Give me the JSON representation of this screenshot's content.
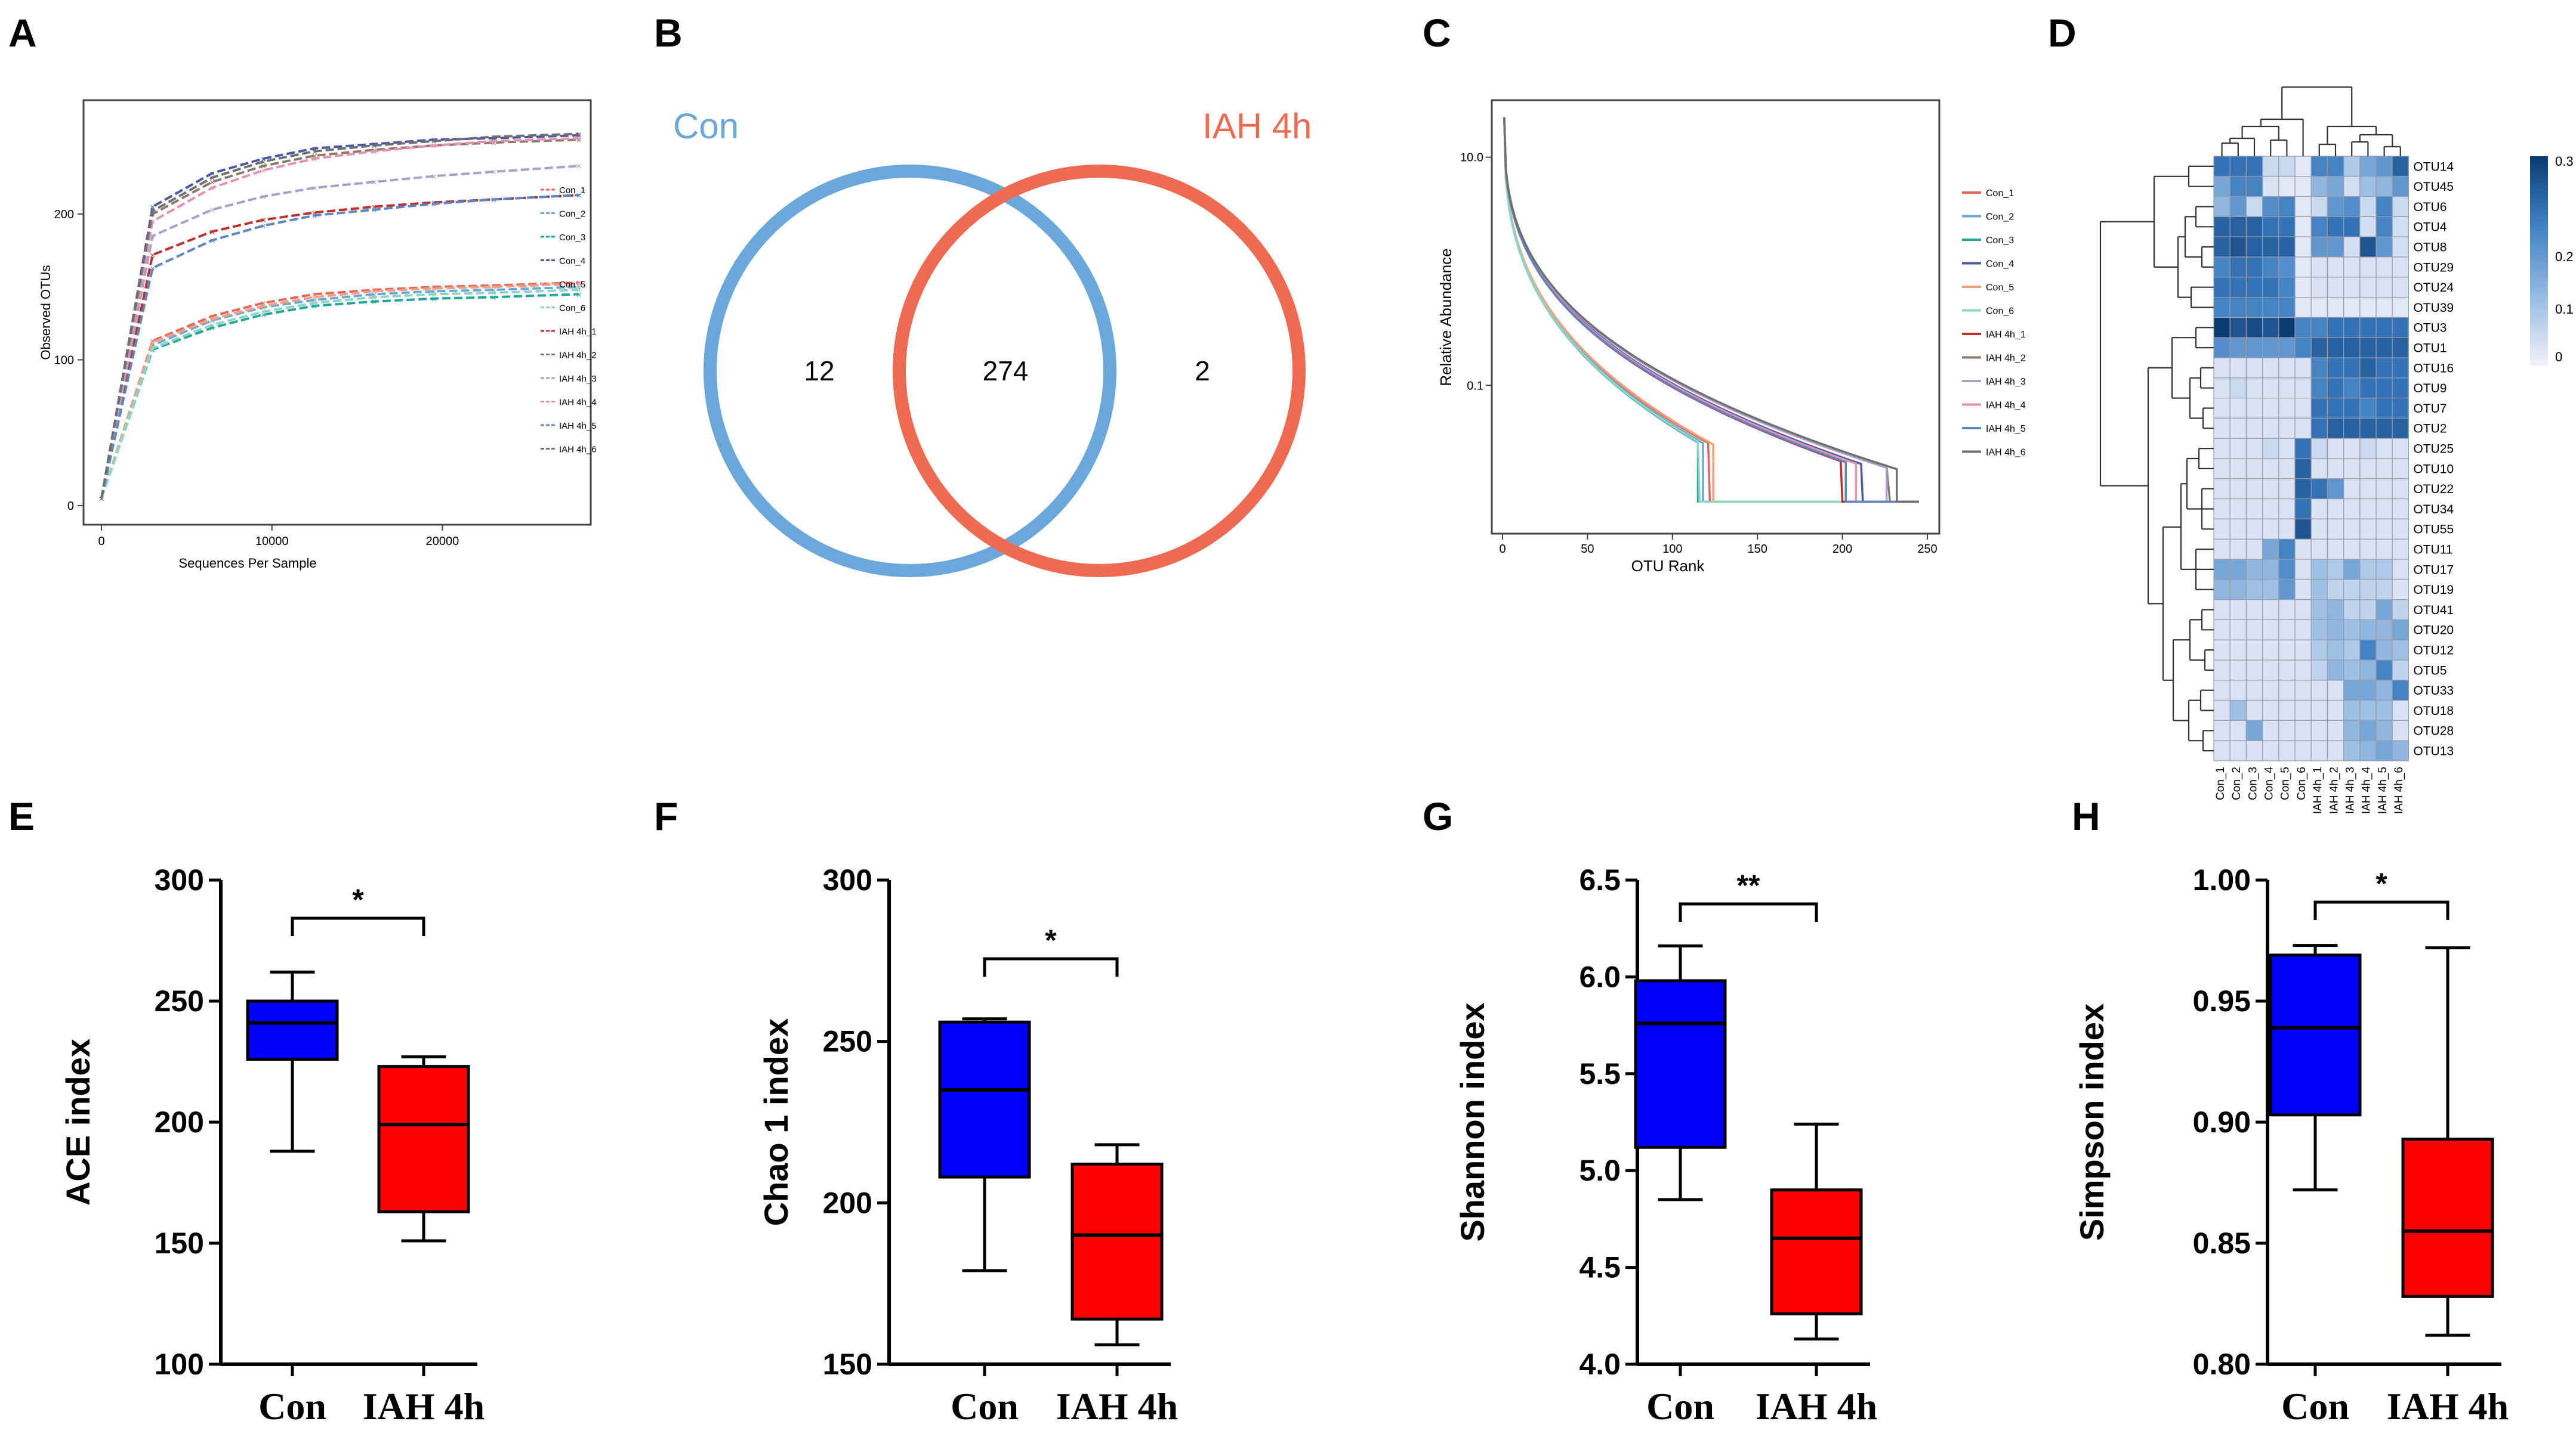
{
  "figure": {
    "panel_letters": [
      "A",
      "B",
      "C",
      "D",
      "E",
      "F",
      "G",
      "H"
    ],
    "colors": {
      "con": "#6aa8dc",
      "iah": "#ee6a50",
      "box_con": "#0000ff",
      "box_iah": "#ff0000",
      "series": [
        "#e8645a",
        "#6aa8dc",
        "#1fa89a",
        "#4a58a8",
        "#f0a080",
        "#8fd4c4",
        "#c0302a",
        "#8a7a6a",
        "#a8a0c8",
        "#e890b0",
        "#5a86c6",
        "#707070"
      ]
    }
  },
  "chart_data": [
    {
      "panel": "A",
      "type": "line",
      "title": "",
      "xlabel": "Sequences Per Sample",
      "ylabel": "Observed OTUs",
      "xlim": [
        0,
        28000
      ],
      "ylim": [
        0,
        265
      ],
      "xticks": [
        0,
        10000,
        20000
      ],
      "xtick_labels": [
        "0",
        "10000",
        "20000"
      ],
      "yticks": [
        0,
        100,
        200
      ],
      "ytick_labels": [
        "0",
        "100",
        "200"
      ],
      "x": [
        0,
        3000,
        6500,
        9500,
        12500,
        16000,
        19500,
        23000,
        28000
      ],
      "series": [
        {
          "name": "Con_1",
          "values": [
            5,
            113,
            130,
            139,
            145,
            148,
            150,
            151,
            153
          ]
        },
        {
          "name": "Con_2",
          "values": [
            5,
            110,
            127,
            136,
            141,
            145,
            147,
            148,
            150
          ]
        },
        {
          "name": "Con_3",
          "values": [
            5,
            107,
            122,
            131,
            137,
            140,
            142,
            143,
            145
          ]
        },
        {
          "name": "Con_4",
          "values": [
            5,
            205,
            228,
            238,
            245,
            248,
            251,
            252,
            254
          ]
        },
        {
          "name": "Con_5",
          "values": [
            5,
            112,
            128,
            137,
            143,
            147,
            149,
            150,
            152
          ]
        },
        {
          "name": "Con_6",
          "values": [
            5,
            108,
            124,
            133,
            139,
            143,
            145,
            146,
            148
          ]
        },
        {
          "name": "IAH 4h_1",
          "values": [
            5,
            172,
            188,
            196,
            201,
            205,
            208,
            210,
            213
          ]
        },
        {
          "name": "IAH 4h_2",
          "values": [
            5,
            200,
            222,
            233,
            240,
            244,
            247,
            249,
            251
          ]
        },
        {
          "name": "IAH 4h_3",
          "values": [
            5,
            185,
            203,
            212,
            218,
            222,
            226,
            229,
            233
          ]
        },
        {
          "name": "IAH 4h_4",
          "values": [
            5,
            195,
            218,
            230,
            238,
            243,
            247,
            250,
            252
          ]
        },
        {
          "name": "IAH 4h_5",
          "values": [
            5,
            163,
            182,
            192,
            199,
            203,
            207,
            210,
            213
          ]
        },
        {
          "name": "IAH 4h_6",
          "values": [
            5,
            202,
            225,
            236,
            243,
            247,
            250,
            253,
            255
          ]
        }
      ]
    },
    {
      "panel": "B",
      "type": "venn",
      "sets": [
        "Con",
        "IAH 4h"
      ],
      "only_con": "12",
      "shared": "274",
      "only_iah": "2"
    },
    {
      "panel": "C",
      "type": "line",
      "title": "",
      "xlabel": "OTU Rank",
      "ylabel": "Relative Abundance",
      "yscale": "log",
      "xlim": [
        -10,
        255
      ],
      "ylim_log10": [
        -2.3,
        1.5
      ],
      "xticks": [
        0,
        50,
        100,
        150,
        200,
        250
      ],
      "xtick_labels": [
        "0",
        "50",
        "100",
        "150",
        "200",
        "250"
      ],
      "yticks": [
        10,
        0.1
      ],
      "ytick_labels": [
        "10.0",
        "0.1"
      ],
      "legend": [
        "Con_1",
        "Con_2",
        "Con_3",
        "Con_4",
        "Con_5",
        "Con_6",
        "IAH 4h_1",
        "IAH 4h_2",
        "IAH 4h_3",
        "IAH 4h_4",
        "IAH 4h_5",
        "IAH 4h_6"
      ],
      "end_ranks": [
        122,
        118,
        115,
        212,
        124,
        116,
        200,
        228,
        226,
        208,
        202,
        232
      ]
    },
    {
      "panel": "D",
      "type": "heatmap",
      "rows": [
        "OTU14",
        "OTU45",
        "OTU6",
        "OTU4",
        "OTU8",
        "OTU29",
        "OTU24",
        "OTU39",
        "OTU3",
        "OTU1",
        "OTU16",
        "OTU9",
        "OTU7",
        "OTU2",
        "OTU25",
        "OTU10",
        "OTU22",
        "OTU34",
        "OTU55",
        "OTU11",
        "OTU17",
        "OTU19",
        "OTU41",
        "OTU20",
        "OTU12",
        "OTU5",
        "OTU33",
        "OTU18",
        "OTU28",
        "OTU13"
      ],
      "columns": [
        "Con_1",
        "Con_2",
        "Con_3",
        "Con_4",
        "Con_5",
        "Con_6",
        "IAH 4h_1",
        "IAH 4h_2",
        "IAH 4h_3",
        "IAH 4h_4",
        "IAH 4h_5",
        "IAH 4h_6"
      ],
      "colorbar_ticks": [
        "0.3",
        "0.2",
        "0.1",
        "0"
      ],
      "colorbar_range": [
        0,
        0.35
      ],
      "values": [
        [
          0.25,
          0.25,
          0.25,
          0.05,
          0.05,
          0.02,
          0.22,
          0.22,
          0.08,
          0.15,
          0.18,
          0.28
        ],
        [
          0.15,
          0.22,
          0.22,
          0.03,
          0.02,
          0.02,
          0.12,
          0.15,
          0.04,
          0.1,
          0.12,
          0.18
        ],
        [
          0.12,
          0.18,
          0.05,
          0.2,
          0.22,
          0.02,
          0.05,
          0.18,
          0.2,
          0.05,
          0.22,
          0.05
        ],
        [
          0.28,
          0.28,
          0.28,
          0.25,
          0.25,
          0.02,
          0.22,
          0.25,
          0.25,
          0.04,
          0.22,
          0.04
        ],
        [
          0.28,
          0.3,
          0.28,
          0.28,
          0.28,
          0.02,
          0.18,
          0.18,
          0.04,
          0.3,
          0.18,
          0.04
        ],
        [
          0.22,
          0.25,
          0.25,
          0.22,
          0.2,
          0.02,
          0.03,
          0.03,
          0.03,
          0.03,
          0.03,
          0.03
        ],
        [
          0.25,
          0.25,
          0.25,
          0.25,
          0.22,
          0.02,
          0.03,
          0.03,
          0.03,
          0.03,
          0.03,
          0.03
        ],
        [
          0.22,
          0.22,
          0.22,
          0.22,
          0.22,
          0.02,
          0.02,
          0.02,
          0.02,
          0.02,
          0.02,
          0.02
        ],
        [
          0.35,
          0.3,
          0.32,
          0.3,
          0.35,
          0.22,
          0.22,
          0.25,
          0.25,
          0.25,
          0.25,
          0.25
        ],
        [
          0.2,
          0.18,
          0.18,
          0.18,
          0.18,
          0.22,
          0.28,
          0.28,
          0.28,
          0.28,
          0.28,
          0.28
        ],
        [
          0.03,
          0.03,
          0.03,
          0.03,
          0.03,
          0.03,
          0.22,
          0.25,
          0.25,
          0.28,
          0.25,
          0.25
        ],
        [
          0.03,
          0.05,
          0.03,
          0.03,
          0.03,
          0.03,
          0.22,
          0.25,
          0.22,
          0.25,
          0.25,
          0.25
        ],
        [
          0.03,
          0.03,
          0.03,
          0.03,
          0.03,
          0.03,
          0.25,
          0.25,
          0.25,
          0.22,
          0.25,
          0.25
        ],
        [
          0.03,
          0.03,
          0.03,
          0.03,
          0.03,
          0.03,
          0.25,
          0.28,
          0.28,
          0.28,
          0.28,
          0.28
        ],
        [
          0.03,
          0.03,
          0.03,
          0.05,
          0.03,
          0.25,
          0.05,
          0.03,
          0.03,
          0.05,
          0.03,
          0.03
        ],
        [
          0.03,
          0.03,
          0.03,
          0.03,
          0.03,
          0.28,
          0.03,
          0.03,
          0.03,
          0.03,
          0.03,
          0.03
        ],
        [
          0.03,
          0.03,
          0.03,
          0.03,
          0.03,
          0.28,
          0.25,
          0.18,
          0.03,
          0.03,
          0.03,
          0.03
        ],
        [
          0.03,
          0.03,
          0.03,
          0.03,
          0.03,
          0.25,
          0.03,
          0.03,
          0.03,
          0.03,
          0.03,
          0.03
        ],
        [
          0.03,
          0.03,
          0.03,
          0.03,
          0.03,
          0.3,
          0.03,
          0.03,
          0.03,
          0.03,
          0.03,
          0.03
        ],
        [
          0.03,
          0.03,
          0.03,
          0.15,
          0.22,
          0.03,
          0.03,
          0.03,
          0.03,
          0.03,
          0.03,
          0.03
        ],
        [
          0.15,
          0.15,
          0.12,
          0.12,
          0.2,
          0.03,
          0.1,
          0.08,
          0.15,
          0.08,
          0.08,
          0.03
        ],
        [
          0.12,
          0.12,
          0.1,
          0.1,
          0.18,
          0.03,
          0.1,
          0.06,
          0.06,
          0.06,
          0.06,
          0.03
        ],
        [
          0.03,
          0.03,
          0.03,
          0.03,
          0.03,
          0.03,
          0.1,
          0.12,
          0.06,
          0.06,
          0.15,
          0.06
        ],
        [
          0.03,
          0.03,
          0.03,
          0.03,
          0.03,
          0.03,
          0.1,
          0.12,
          0.1,
          0.12,
          0.12,
          0.15
        ],
        [
          0.03,
          0.03,
          0.03,
          0.03,
          0.03,
          0.03,
          0.08,
          0.1,
          0.08,
          0.22,
          0.12,
          0.1
        ],
        [
          0.03,
          0.03,
          0.03,
          0.03,
          0.03,
          0.03,
          0.06,
          0.12,
          0.1,
          0.12,
          0.22,
          0.06
        ],
        [
          0.03,
          0.03,
          0.03,
          0.03,
          0.03,
          0.03,
          0.03,
          0.03,
          0.15,
          0.15,
          0.12,
          0.22
        ],
        [
          0.03,
          0.1,
          0.03,
          0.03,
          0.03,
          0.03,
          0.03,
          0.03,
          0.1,
          0.1,
          0.1,
          0.03
        ],
        [
          0.03,
          0.03,
          0.15,
          0.03,
          0.03,
          0.03,
          0.03,
          0.03,
          0.12,
          0.15,
          0.12,
          0.03
        ],
        [
          0.03,
          0.03,
          0.03,
          0.03,
          0.03,
          0.03,
          0.03,
          0.03,
          0.1,
          0.12,
          0.15,
          0.12
        ]
      ]
    },
    {
      "panel": "E",
      "type": "box",
      "ylabel": "ACE index",
      "ylim": [
        100,
        300
      ],
      "yticks": [
        100,
        150,
        200,
        250,
        300
      ],
      "categories": [
        "Con",
        "IAH 4h"
      ],
      "significance": "*",
      "boxes": [
        {
          "min": 188,
          "q1": 226,
          "median": 241,
          "q3": 250,
          "max": 262
        },
        {
          "min": 151,
          "q1": 163,
          "median": 199,
          "q3": 223,
          "max": 227
        }
      ]
    },
    {
      "panel": "F",
      "type": "box",
      "ylabel": "Chao 1  index",
      "ylim": [
        150,
        300
      ],
      "yticks": [
        150,
        200,
        250,
        300
      ],
      "categories": [
        "Con",
        "IAH 4h"
      ],
      "significance": "*",
      "boxes": [
        {
          "min": 179,
          "q1": 208,
          "median": 235,
          "q3": 256,
          "max": 257
        },
        {
          "min": 156,
          "q1": 164,
          "median": 190,
          "q3": 212,
          "max": 218
        }
      ]
    },
    {
      "panel": "G",
      "type": "box",
      "ylabel": "Shannon index",
      "ylim": [
        4.0,
        6.5
      ],
      "yticks": [
        4.0,
        4.5,
        5.0,
        5.5,
        6.0,
        6.5
      ],
      "ytick_labels": [
        "4.0",
        "4.5",
        "5.0",
        "5.5",
        "6.0",
        "6.5"
      ],
      "categories": [
        "Con",
        "IAH 4h"
      ],
      "significance": "**",
      "boxes": [
        {
          "min": 4.85,
          "q1": 5.12,
          "median": 5.76,
          "q3": 5.98,
          "max": 6.16
        },
        {
          "min": 4.13,
          "q1": 4.26,
          "median": 4.65,
          "q3": 4.9,
          "max": 5.24
        }
      ]
    },
    {
      "panel": "H",
      "type": "box",
      "ylabel": "Simpson index",
      "ylim": [
        0.8,
        1.0
      ],
      "yticks": [
        0.8,
        0.85,
        0.9,
        0.95,
        1.0
      ],
      "ytick_labels": [
        "0.80",
        "0.85",
        "0.90",
        "0.95",
        "1.00"
      ],
      "categories": [
        "Con",
        "IAH 4h"
      ],
      "significance": "*",
      "boxes": [
        {
          "min": 0.872,
          "q1": 0.903,
          "median": 0.939,
          "q3": 0.969,
          "max": 0.973
        },
        {
          "min": 0.812,
          "q1": 0.828,
          "median": 0.855,
          "q3": 0.893,
          "max": 0.972
        }
      ]
    }
  ]
}
